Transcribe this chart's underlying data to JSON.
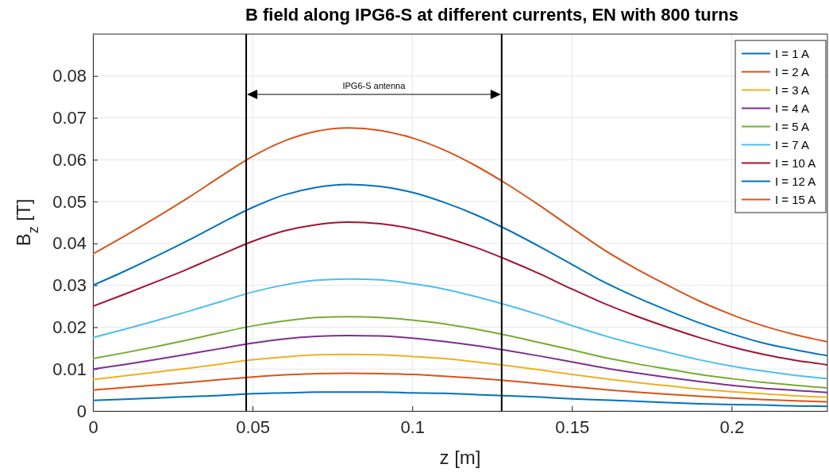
{
  "chart_data": {
    "type": "line",
    "title": "B field along IPG6-S at different currents, EN with 800 turns",
    "xlabel": "z [m]",
    "ylabel": "B$_{z}$ [T]",
    "x": [
      0,
      0.01,
      0.02,
      0.03,
      0.04,
      0.05,
      0.06,
      0.07,
      0.08,
      0.09,
      0.1,
      0.11,
      0.12,
      0.13,
      0.14,
      0.15,
      0.16,
      0.17,
      0.18,
      0.19,
      0.2,
      0.21,
      0.22,
      0.23
    ],
    "series": [
      {
        "name": "I = 1 A",
        "color": "#0072bd",
        "values": [
          0.0025,
          0.0028,
          0.0031,
          0.0034,
          0.0037,
          0.0041,
          0.0043,
          0.0045,
          0.0045,
          0.0045,
          0.0043,
          0.0042,
          0.0039,
          0.0036,
          0.0033,
          0.0029,
          0.0026,
          0.0023,
          0.002,
          0.0017,
          0.0015,
          0.0014,
          0.0012,
          0.0011
        ]
      },
      {
        "name": "I = 2 A",
        "color": "#d95319",
        "values": [
          0.005,
          0.0056,
          0.0062,
          0.0068,
          0.0075,
          0.0081,
          0.0086,
          0.0089,
          0.009,
          0.0089,
          0.0087,
          0.0083,
          0.0078,
          0.0072,
          0.0065,
          0.0058,
          0.0051,
          0.0045,
          0.004,
          0.0035,
          0.0031,
          0.0027,
          0.0024,
          0.0022
        ]
      },
      {
        "name": "I = 3 A",
        "color": "#edb120",
        "values": [
          0.0075,
          0.0084,
          0.0093,
          0.0102,
          0.0112,
          0.0122,
          0.0129,
          0.0134,
          0.0135,
          0.0134,
          0.013,
          0.0125,
          0.0117,
          0.0108,
          0.0098,
          0.0087,
          0.0077,
          0.0068,
          0.006,
          0.0052,
          0.0046,
          0.0041,
          0.0036,
          0.0033
        ]
      },
      {
        "name": "I = 4 A",
        "color": "#7e2f8e",
        "values": [
          0.01,
          0.0111,
          0.0123,
          0.0136,
          0.0149,
          0.0162,
          0.0172,
          0.0178,
          0.018,
          0.0179,
          0.0174,
          0.0166,
          0.0156,
          0.0144,
          0.0131,
          0.0117,
          0.0103,
          0.0091,
          0.008,
          0.007,
          0.0061,
          0.0054,
          0.0049,
          0.0044
        ]
      },
      {
        "name": "I = 5 A",
        "color": "#77ac30",
        "values": [
          0.0125,
          0.0139,
          0.0154,
          0.017,
          0.0187,
          0.0203,
          0.0215,
          0.0223,
          0.0225,
          0.0223,
          0.0217,
          0.0208,
          0.0195,
          0.018,
          0.0163,
          0.0146,
          0.0128,
          0.0113,
          0.01,
          0.0087,
          0.0077,
          0.0068,
          0.0061,
          0.0055
        ]
      },
      {
        "name": "I = 7 A",
        "color": "#4dbeee",
        "values": [
          0.0175,
          0.0195,
          0.0216,
          0.0238,
          0.0261,
          0.0284,
          0.0301,
          0.0312,
          0.0315,
          0.0313,
          0.0304,
          0.0291,
          0.0273,
          0.0252,
          0.0229,
          0.0204,
          0.018,
          0.0159,
          0.014,
          0.0122,
          0.0107,
          0.0095,
          0.0085,
          0.0077
        ]
      },
      {
        "name": "I = 10 A",
        "color": "#a2142f",
        "values": [
          0.025,
          0.0279,
          0.0309,
          0.034,
          0.0373,
          0.0405,
          0.043,
          0.0445,
          0.0451,
          0.0447,
          0.0435,
          0.0415,
          0.039,
          0.036,
          0.0327,
          0.0291,
          0.0257,
          0.0227,
          0.02,
          0.0175,
          0.0153,
          0.0135,
          0.0121,
          0.011
        ]
      },
      {
        "name": "I = 12 A",
        "color": "#0072bd",
        "values": [
          0.03,
          0.0334,
          0.037,
          0.0408,
          0.0448,
          0.0486,
          0.0516,
          0.0534,
          0.0541,
          0.0536,
          0.0522,
          0.0498,
          0.0468,
          0.0432,
          0.0392,
          0.035,
          0.0308,
          0.0272,
          0.024,
          0.021,
          0.0184,
          0.0162,
          0.0146,
          0.0132
        ]
      },
      {
        "name": "I = 15 A",
        "color": "#d95319",
        "values": [
          0.0375,
          0.0418,
          0.0463,
          0.051,
          0.056,
          0.0608,
          0.0645,
          0.0668,
          0.0676,
          0.067,
          0.0652,
          0.0623,
          0.0585,
          0.054,
          0.049,
          0.0437,
          0.0385,
          0.034,
          0.03,
          0.0262,
          0.023,
          0.0203,
          0.0182,
          0.0165
        ]
      }
    ],
    "xlim": [
      0,
      0.23
    ],
    "ylim": [
      0,
      0.09
    ],
    "xticks": [
      0,
      0.05,
      0.1,
      0.15,
      0.2
    ],
    "yticks": [
      0,
      0.01,
      0.02,
      0.03,
      0.04,
      0.05,
      0.06,
      0.07,
      0.08
    ],
    "ref_lines": [
      {
        "axis": "x",
        "value": 0.048,
        "color": "#000000"
      },
      {
        "axis": "x",
        "value": 0.128,
        "color": "#000000"
      }
    ],
    "annotations": [
      "IPG6-S antenna"
    ],
    "grid": true,
    "legend": "top right",
    "marker": "none",
    "line_style": "solid"
  }
}
